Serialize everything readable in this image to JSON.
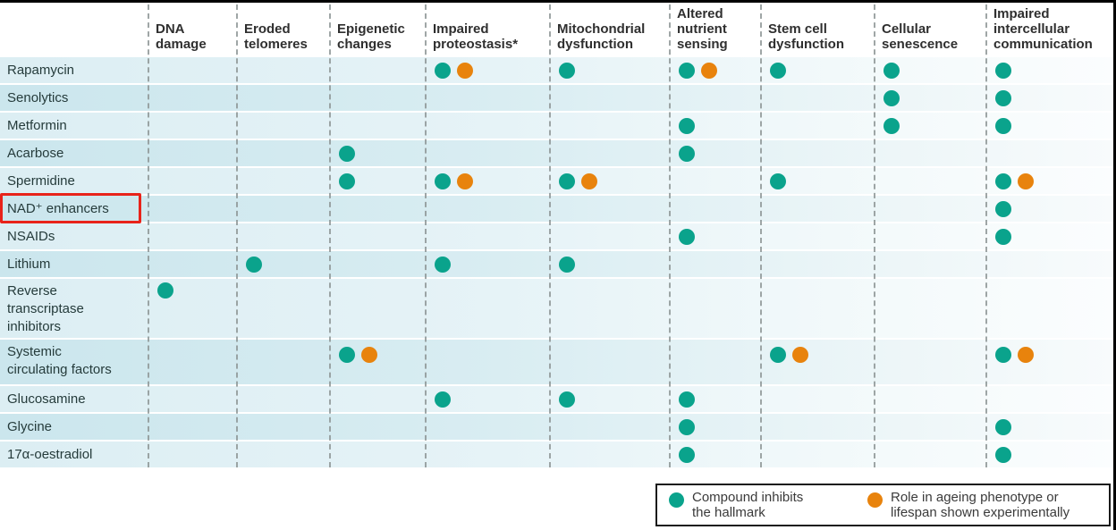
{
  "colors": {
    "teal": "#0aa38c",
    "orange": "#e8830d",
    "annotation_red": "#e8231a",
    "dashed_line": "#8f9797",
    "header_text": "#2f2f2f",
    "row_label_text": "#253b3b"
  },
  "chart_data": {
    "type": "table",
    "title": "",
    "columns": [
      "DNA damage",
      "Eroded telomeres",
      "Epigenetic changes",
      "Impaired proteostasis*",
      "Mitochondrial dysfunction",
      "Altered nutrient sensing",
      "Stem cell dysfunction",
      "Cellular senescence",
      "Impaired intercellular communication"
    ],
    "cell_codes": {
      "t": "teal dot — compound inhibits the hallmark",
      "to": "teal dot + orange dot — inhibits hallmark and role in ageing phenotype or lifespan shown experimentally"
    },
    "rows": [
      {
        "label": "Rapamycin",
        "cells": [
          "",
          "",
          "",
          "to",
          "t",
          "to",
          "t",
          "t",
          "t"
        ]
      },
      {
        "label": "Senolytics",
        "cells": [
          "",
          "",
          "",
          "",
          "",
          "",
          "",
          "t",
          "t"
        ]
      },
      {
        "label": "Metformin",
        "cells": [
          "",
          "",
          "",
          "",
          "",
          "t",
          "",
          "t",
          "t"
        ]
      },
      {
        "label": "Acarbose",
        "cells": [
          "",
          "",
          "t",
          "",
          "",
          "t",
          "",
          "",
          ""
        ]
      },
      {
        "label": "Spermidine",
        "cells": [
          "",
          "",
          "t",
          "to",
          "to",
          "",
          "t",
          "",
          "to"
        ]
      },
      {
        "label": "NAD⁺ enhancers",
        "cells": [
          "",
          "",
          "",
          "",
          "",
          "",
          "",
          "",
          "t"
        ]
      },
      {
        "label": "NSAIDs",
        "cells": [
          "",
          "",
          "",
          "",
          "",
          "t",
          "",
          "",
          "t"
        ]
      },
      {
        "label": "Lithium",
        "cells": [
          "",
          "t",
          "",
          "t",
          "t",
          "",
          "",
          "",
          ""
        ]
      },
      {
        "label": "Reverse transcriptase inhibitors",
        "cells": [
          "t",
          "",
          "",
          "",
          "",
          "",
          "",
          "",
          ""
        ]
      },
      {
        "label": "Systemic circulating factors",
        "cells": [
          "",
          "",
          "to",
          "",
          "",
          "",
          "to",
          "",
          "to"
        ]
      },
      {
        "label": "Glucosamine",
        "cells": [
          "",
          "",
          "",
          "t",
          "t",
          "t",
          "",
          "",
          ""
        ]
      },
      {
        "label": "Glycine",
        "cells": [
          "",
          "",
          "",
          "",
          "",
          "t",
          "",
          "",
          "t"
        ]
      },
      {
        "label": "17α-oestradiol",
        "cells": [
          "",
          "",
          "",
          "",
          "",
          "t",
          "",
          "",
          "t"
        ]
      }
    ],
    "legend": {
      "items": [
        {
          "color_key": "teal",
          "line1": "Compound inhibits",
          "line2": "the hallmark"
        },
        {
          "color_key": "orange",
          "line1": "Role in ageing phenotype or",
          "line2": "lifespan shown experimentally"
        }
      ]
    },
    "annotation": {
      "highlighted_row": "NAD⁺ enhancers"
    }
  }
}
